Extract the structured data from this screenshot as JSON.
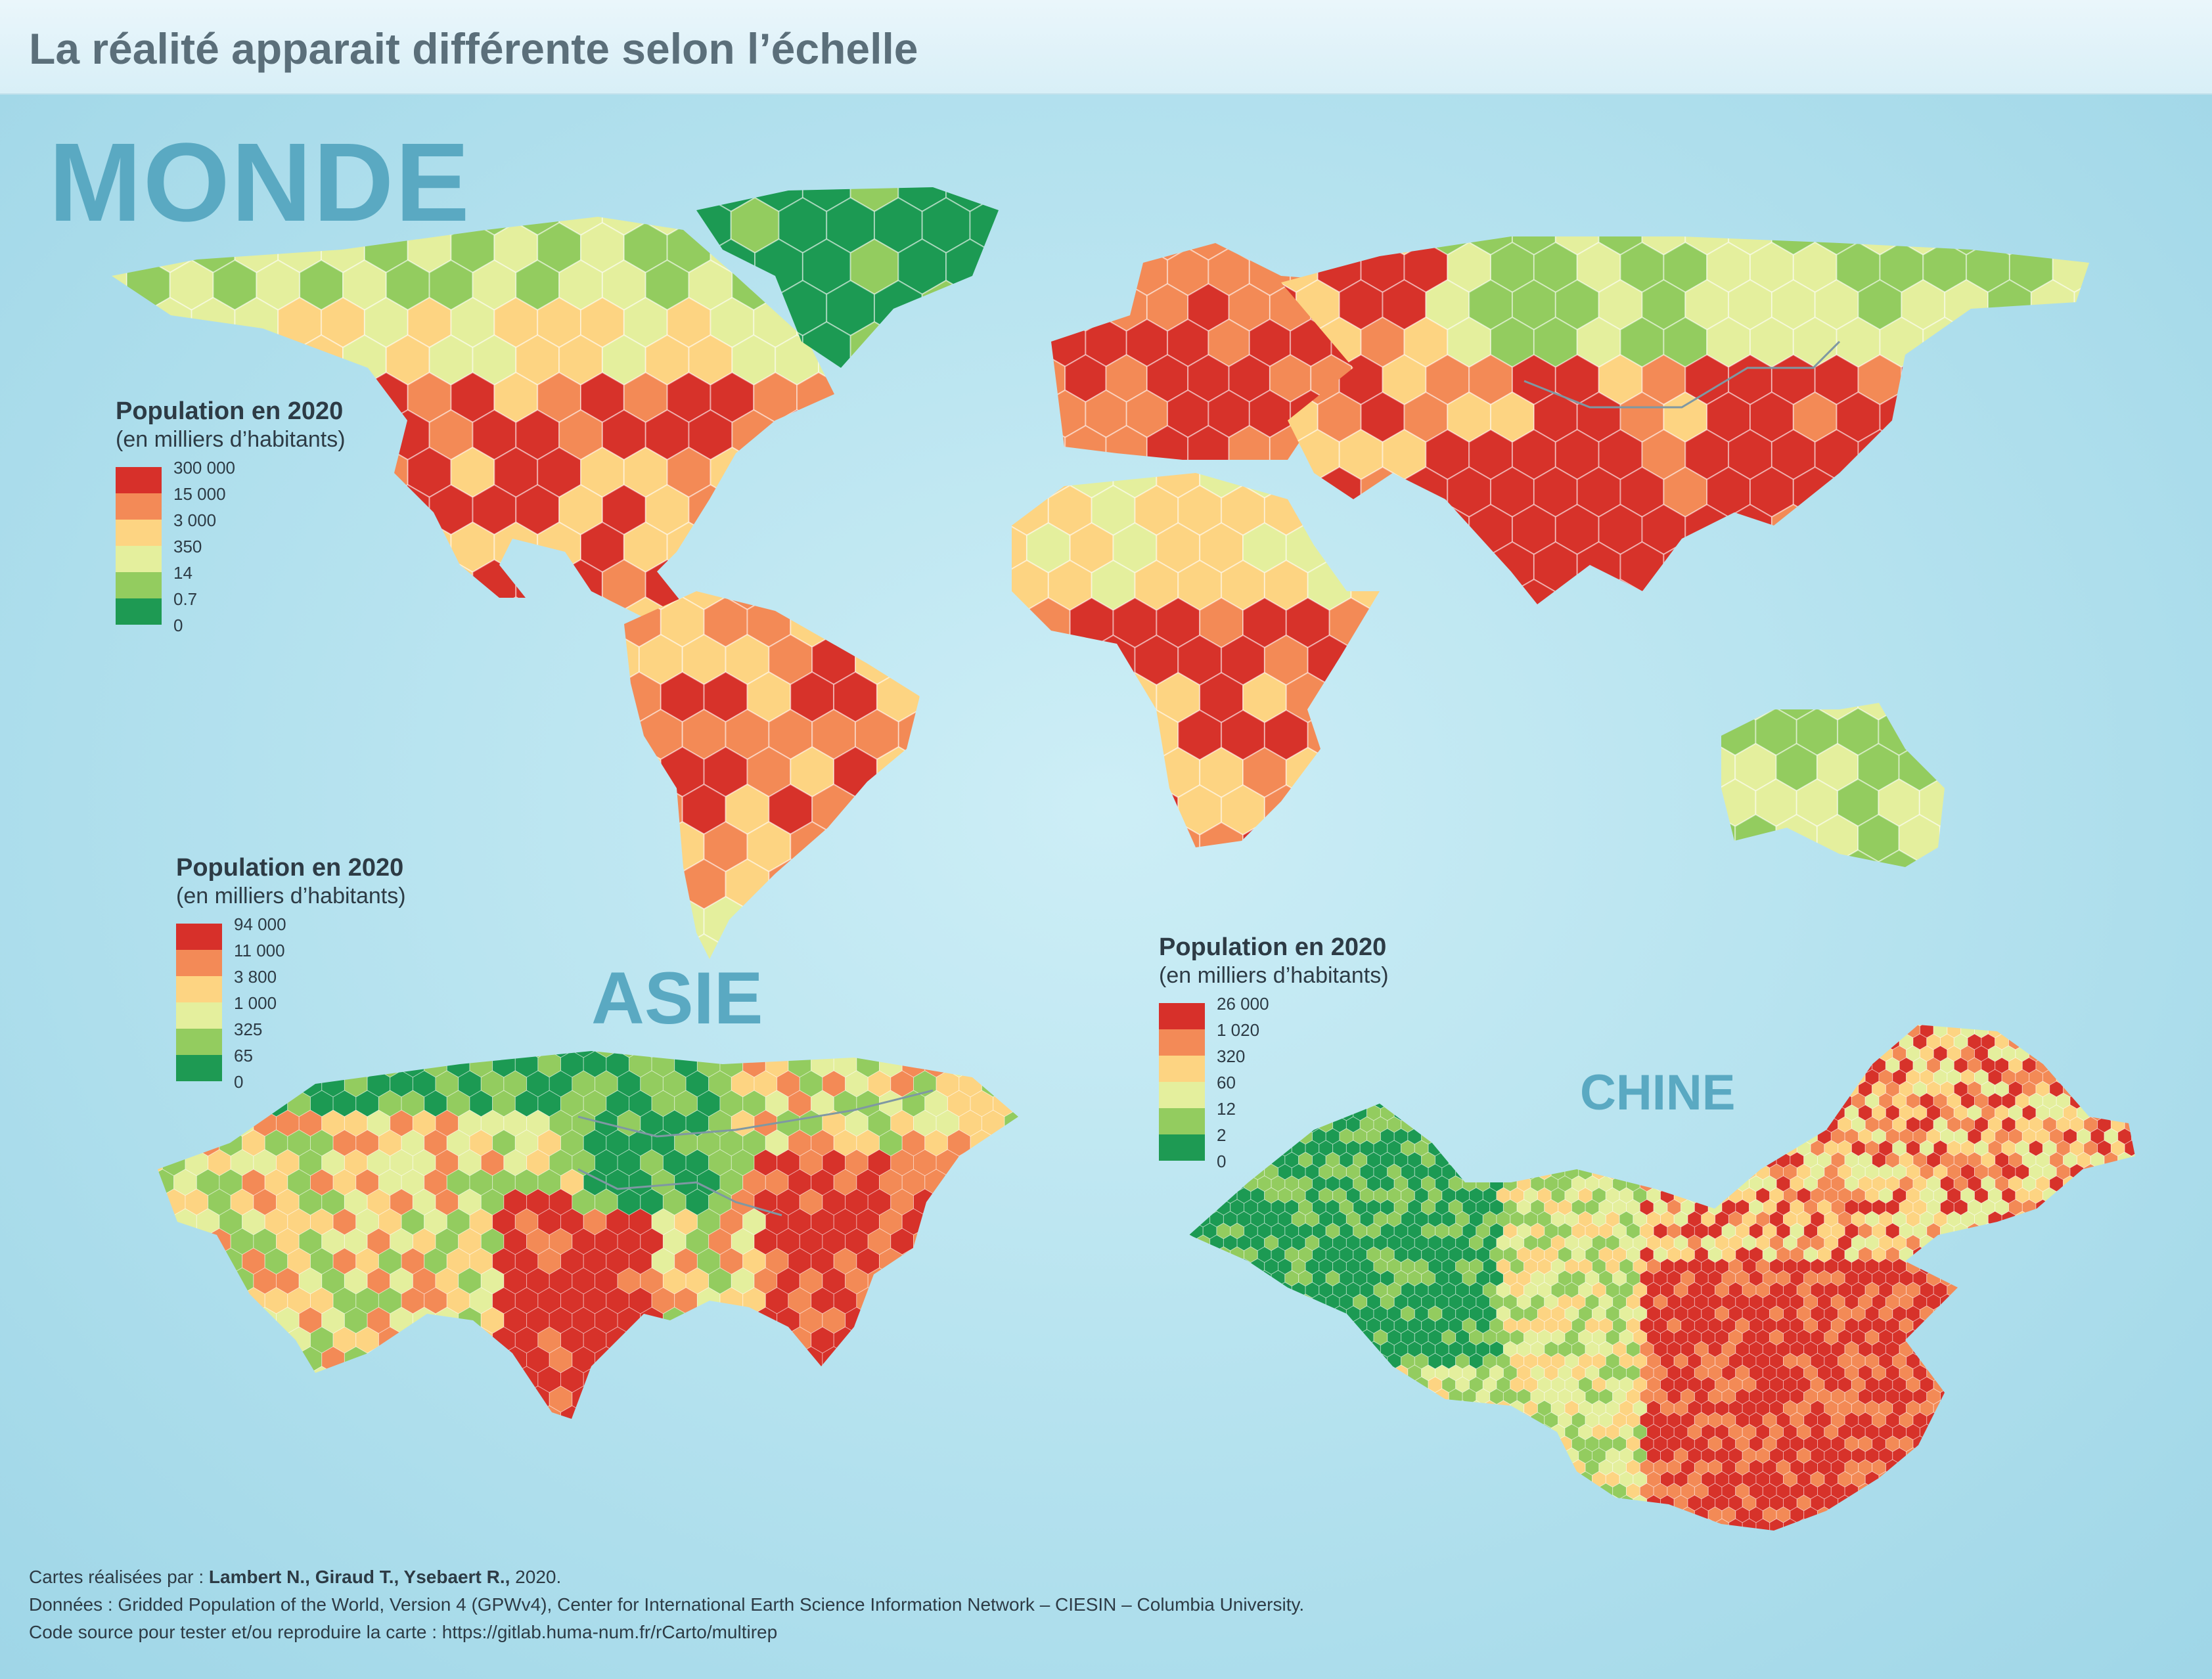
{
  "title": "La réalité apparait différente selon l’échelle",
  "maps": {
    "monde": {
      "title": "MONDE",
      "legend": {
        "title": "Population en 2020",
        "subtitle": "(en milliers d’habitants)",
        "breaks": [
          "300 000",
          "15 000",
          "3 000",
          "350",
          "14",
          "0.7",
          "0"
        ]
      }
    },
    "asie": {
      "title": "ASIE",
      "legend": {
        "title": "Population en 2020",
        "subtitle": "(en milliers d’habitants)",
        "breaks": [
          "94 000",
          "11 000",
          "3 800",
          "1 000",
          "325",
          "65",
          "0"
        ]
      }
    },
    "chine": {
      "title": "CHINE",
      "legend": {
        "title": "Population en 2020",
        "subtitle": "(en milliers d’habitants)",
        "breaks": [
          "26 000",
          "1 020",
          "320",
          "60",
          "12",
          "2",
          "0"
        ]
      }
    }
  },
  "palette": [
    "#d7302a",
    "#f38a57",
    "#fdd482",
    "#e4ef9d",
    "#93cc5f",
    "#1e9a53"
  ],
  "credits": {
    "line1_prefix": "Cartes réalisées par : ",
    "line1_authors": "Lambert N., Giraud T., Ysebaert R.,",
    "line1_suffix": " 2020.",
    "line2": "Données : Gridded Population of the World, Version 4 (GPWv4), Center for International Earth Science Information Network – CIESIN – Columbia University.",
    "line3": "Code source pour tester et/ou reproduire la carte : https://gitlab.huma-num.fr/rCarto/multirep"
  }
}
